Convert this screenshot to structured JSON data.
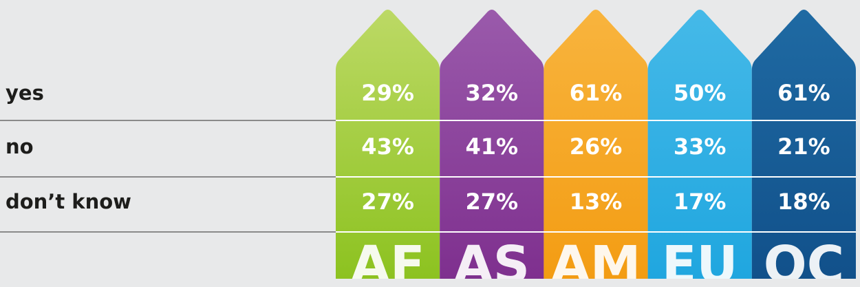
{
  "columns": [
    "AF",
    "AS",
    "AM",
    "EU",
    "OC"
  ],
  "rows": [
    {
      "label": "yes",
      "values": [
        "29%",
        "32%",
        "61%",
        "50%",
        "61%"
      ]
    },
    {
      "label": "no",
      "values": [
        "43%",
        "41%",
        "26%",
        "33%",
        "21%"
      ]
    },
    {
      "label": "don’t know",
      "values": [
        "27%",
        "27%",
        "13%",
        "17%",
        "18%"
      ]
    }
  ]
}
